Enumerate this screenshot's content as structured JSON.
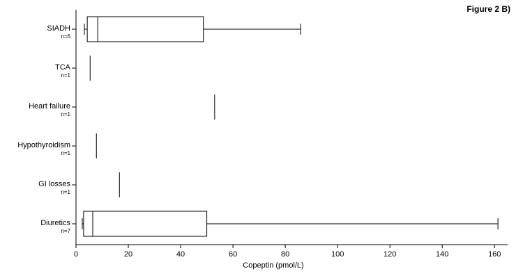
{
  "chart_data": {
    "type": "boxplot",
    "title": "Figure 2 B)",
    "x_label": "Copeptin (pmol/L)",
    "categories": [
      "SIADH",
      "TCA",
      "Heart failure",
      "Hypothyroidism",
      "GI losses",
      "Diuretics"
    ],
    "n_labels": [
      "n=6",
      "n=1",
      "n=1",
      "n=1",
      "n=1",
      "n=7"
    ],
    "boxes": [
      {
        "min": 3.2,
        "q1": 4.3,
        "median": 8.3,
        "q3": 48.7,
        "max": 85.9
      },
      {
        "value": 5.4
      },
      {
        "value": 53
      },
      {
        "value": 7.8
      },
      {
        "value": 16.6
      },
      {
        "min": 2.4,
        "q1": 2.9,
        "median": 6.4,
        "q3": 50,
        "max": 161.3
      }
    ],
    "xlim": [
      0,
      165
    ],
    "xticks": [
      0,
      20,
      40,
      60,
      80,
      100,
      120,
      140,
      160
    ]
  }
}
